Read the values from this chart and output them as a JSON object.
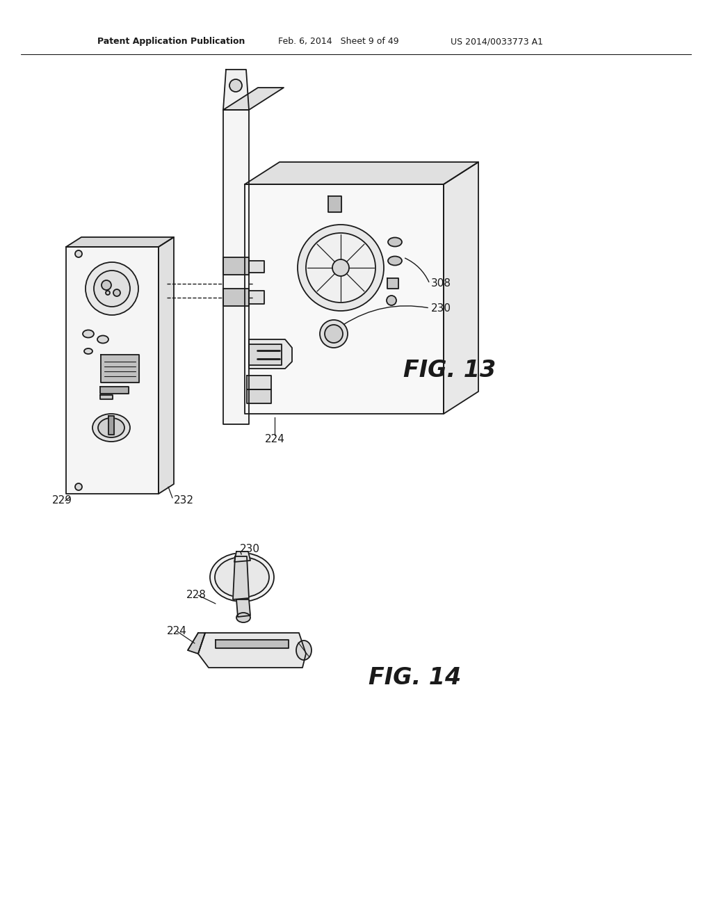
{
  "bg_color": "#ffffff",
  "line_color": "#1a1a1a",
  "lw": 1.3,
  "header_left": "Patent Application Publication",
  "header_center": "Feb. 6, 2014   Sheet 9 of 49",
  "header_right": "US 2014/0033773 A1",
  "fig13_label": "FIG. 13",
  "fig14_label": "FIG. 14"
}
